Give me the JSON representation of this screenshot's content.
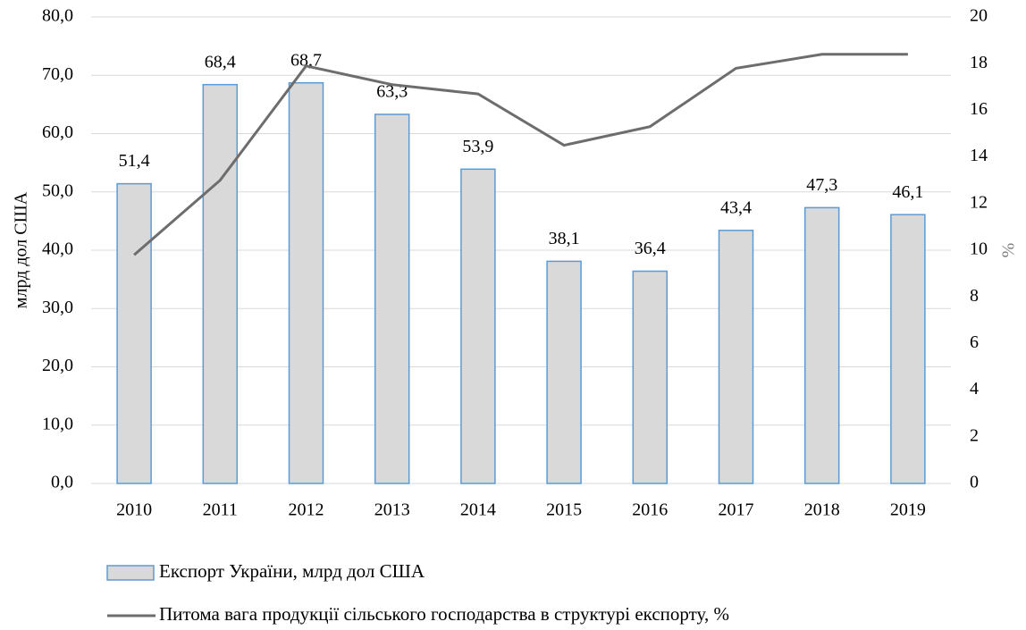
{
  "chart_data": {
    "type": "bar",
    "categories": [
      "2010",
      "2011",
      "2012",
      "2013",
      "2014",
      "2015",
      "2016",
      "2017",
      "2018",
      "2019"
    ],
    "series": [
      {
        "name": "Експорт України, млрд дол США",
        "type": "bar",
        "color": "#d9d9d9",
        "edge_color": "#5b9bd5",
        "values": [
          51.4,
          68.4,
          68.7,
          63.3,
          53.9,
          38.1,
          36.4,
          43.4,
          47.3,
          46.1
        ],
        "value_labels": [
          "51,4",
          "68,4",
          "68,7",
          "63,3",
          "53,9",
          "38,1",
          "36,4",
          "43,4",
          "47,3",
          "46,1"
        ]
      },
      {
        "name": "Питома вага продукції сільського господарства в структурі експорту, %",
        "type": "line",
        "axis": "y2",
        "color": "#6d6d6d",
        "values": [
          9.8,
          13.0,
          17.9,
          17.1,
          16.7,
          14.5,
          15.3,
          17.8,
          18.4,
          18.4
        ]
      }
    ],
    "ylabel": "млрд дол США",
    "y2label": "%",
    "ylim": [
      0,
      80
    ],
    "yticks": [
      {
        "value": 0,
        "label": "0,0"
      },
      {
        "value": 10,
        "label": "10,0"
      },
      {
        "value": 20,
        "label": "20,0"
      },
      {
        "value": 30,
        "label": "30,0"
      },
      {
        "value": 40,
        "label": "40,0"
      },
      {
        "value": 50,
        "label": "50,0"
      },
      {
        "value": 60,
        "label": "60,0"
      },
      {
        "value": 70,
        "label": "70,0"
      },
      {
        "value": 80,
        "label": "80,0"
      }
    ],
    "y2lim": [
      0,
      20
    ],
    "y2ticks": [
      0,
      2,
      4,
      6,
      8,
      10,
      12,
      14,
      16,
      18,
      20
    ],
    "grid": true
  }
}
